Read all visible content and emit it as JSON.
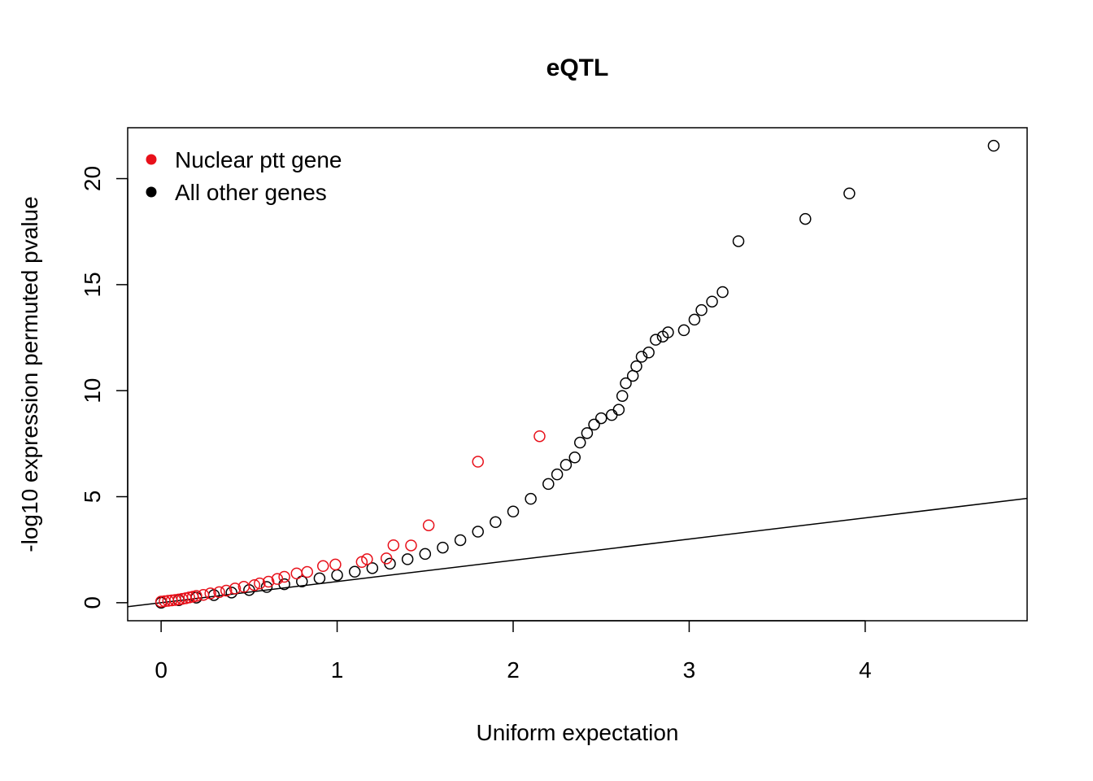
{
  "chart_data": {
    "type": "scatter",
    "title": "eQTL",
    "xlabel": "Uniform expectation",
    "ylabel": "-log10 expression permuted pvalue",
    "xlim": [
      -0.19,
      4.92
    ],
    "ylim": [
      -0.85,
      22.4
    ],
    "xticks": [
      0,
      1,
      2,
      3,
      4
    ],
    "yticks": [
      0,
      5,
      10,
      15,
      20
    ],
    "grid": false,
    "legend": {
      "position": "top-left",
      "entries": [
        {
          "label": "Nuclear ptt gene",
          "color": "#e8101a"
        },
        {
          "label": "All other genes",
          "color": "#000000"
        }
      ]
    },
    "reference_line": {
      "slope": 1,
      "intercept": 0,
      "label": "y = x"
    },
    "series": [
      {
        "name": "Nuclear ptt gene",
        "color": "#e8101a",
        "marker": "open-circle",
        "points": [
          [
            0.0,
            0.05
          ],
          [
            0.02,
            0.07
          ],
          [
            0.04,
            0.09
          ],
          [
            0.06,
            0.11
          ],
          [
            0.08,
            0.13
          ],
          [
            0.1,
            0.15
          ],
          [
            0.12,
            0.18
          ],
          [
            0.14,
            0.21
          ],
          [
            0.16,
            0.25
          ],
          [
            0.18,
            0.28
          ],
          [
            0.2,
            0.32
          ],
          [
            0.24,
            0.37
          ],
          [
            0.28,
            0.44
          ],
          [
            0.33,
            0.5
          ],
          [
            0.37,
            0.57
          ],
          [
            0.42,
            0.67
          ],
          [
            0.47,
            0.75
          ],
          [
            0.53,
            0.83
          ],
          [
            0.56,
            0.91
          ],
          [
            0.61,
            0.99
          ],
          [
            0.66,
            1.12
          ],
          [
            0.7,
            1.22
          ],
          [
            0.77,
            1.38
          ],
          [
            0.83,
            1.45
          ],
          [
            0.92,
            1.73
          ],
          [
            0.99,
            1.8
          ],
          [
            1.14,
            1.92
          ],
          [
            1.17,
            2.05
          ],
          [
            1.28,
            2.09
          ],
          [
            1.32,
            2.71
          ],
          [
            1.42,
            2.7
          ],
          [
            1.52,
            3.65
          ],
          [
            1.8,
            6.65
          ],
          [
            2.15,
            7.85
          ]
        ]
      },
      {
        "name": "All other genes",
        "color": "#000000",
        "marker": "open-circle",
        "points": [
          [
            0.0,
            0.0
          ],
          [
            0.1,
            0.12
          ],
          [
            0.2,
            0.24
          ],
          [
            0.3,
            0.36
          ],
          [
            0.4,
            0.48
          ],
          [
            0.5,
            0.6
          ],
          [
            0.6,
            0.74
          ],
          [
            0.7,
            0.87
          ],
          [
            0.8,
            1.0
          ],
          [
            0.9,
            1.15
          ],
          [
            1.0,
            1.3
          ],
          [
            1.1,
            1.46
          ],
          [
            1.2,
            1.63
          ],
          [
            1.3,
            1.84
          ],
          [
            1.4,
            2.05
          ],
          [
            1.5,
            2.3
          ],
          [
            1.6,
            2.6
          ],
          [
            1.7,
            2.95
          ],
          [
            1.8,
            3.35
          ],
          [
            1.9,
            3.8
          ],
          [
            2.0,
            4.3
          ],
          [
            2.1,
            4.9
          ],
          [
            2.2,
            5.6
          ],
          [
            2.25,
            6.05
          ],
          [
            2.3,
            6.5
          ],
          [
            2.35,
            6.85
          ],
          [
            2.38,
            7.55
          ],
          [
            2.42,
            8.0
          ],
          [
            2.46,
            8.4
          ],
          [
            2.5,
            8.7
          ],
          [
            2.56,
            8.85
          ],
          [
            2.6,
            9.1
          ],
          [
            2.62,
            9.75
          ],
          [
            2.64,
            10.35
          ],
          [
            2.68,
            10.7
          ],
          [
            2.7,
            11.15
          ],
          [
            2.73,
            11.6
          ],
          [
            2.77,
            11.8
          ],
          [
            2.81,
            12.4
          ],
          [
            2.85,
            12.55
          ],
          [
            2.88,
            12.75
          ],
          [
            2.97,
            12.85
          ],
          [
            3.03,
            13.35
          ],
          [
            3.07,
            13.8
          ],
          [
            3.13,
            14.2
          ],
          [
            3.19,
            14.65
          ],
          [
            3.28,
            17.05
          ],
          [
            3.66,
            18.1
          ],
          [
            3.91,
            19.3
          ],
          [
            4.73,
            21.55
          ]
        ]
      }
    ]
  }
}
